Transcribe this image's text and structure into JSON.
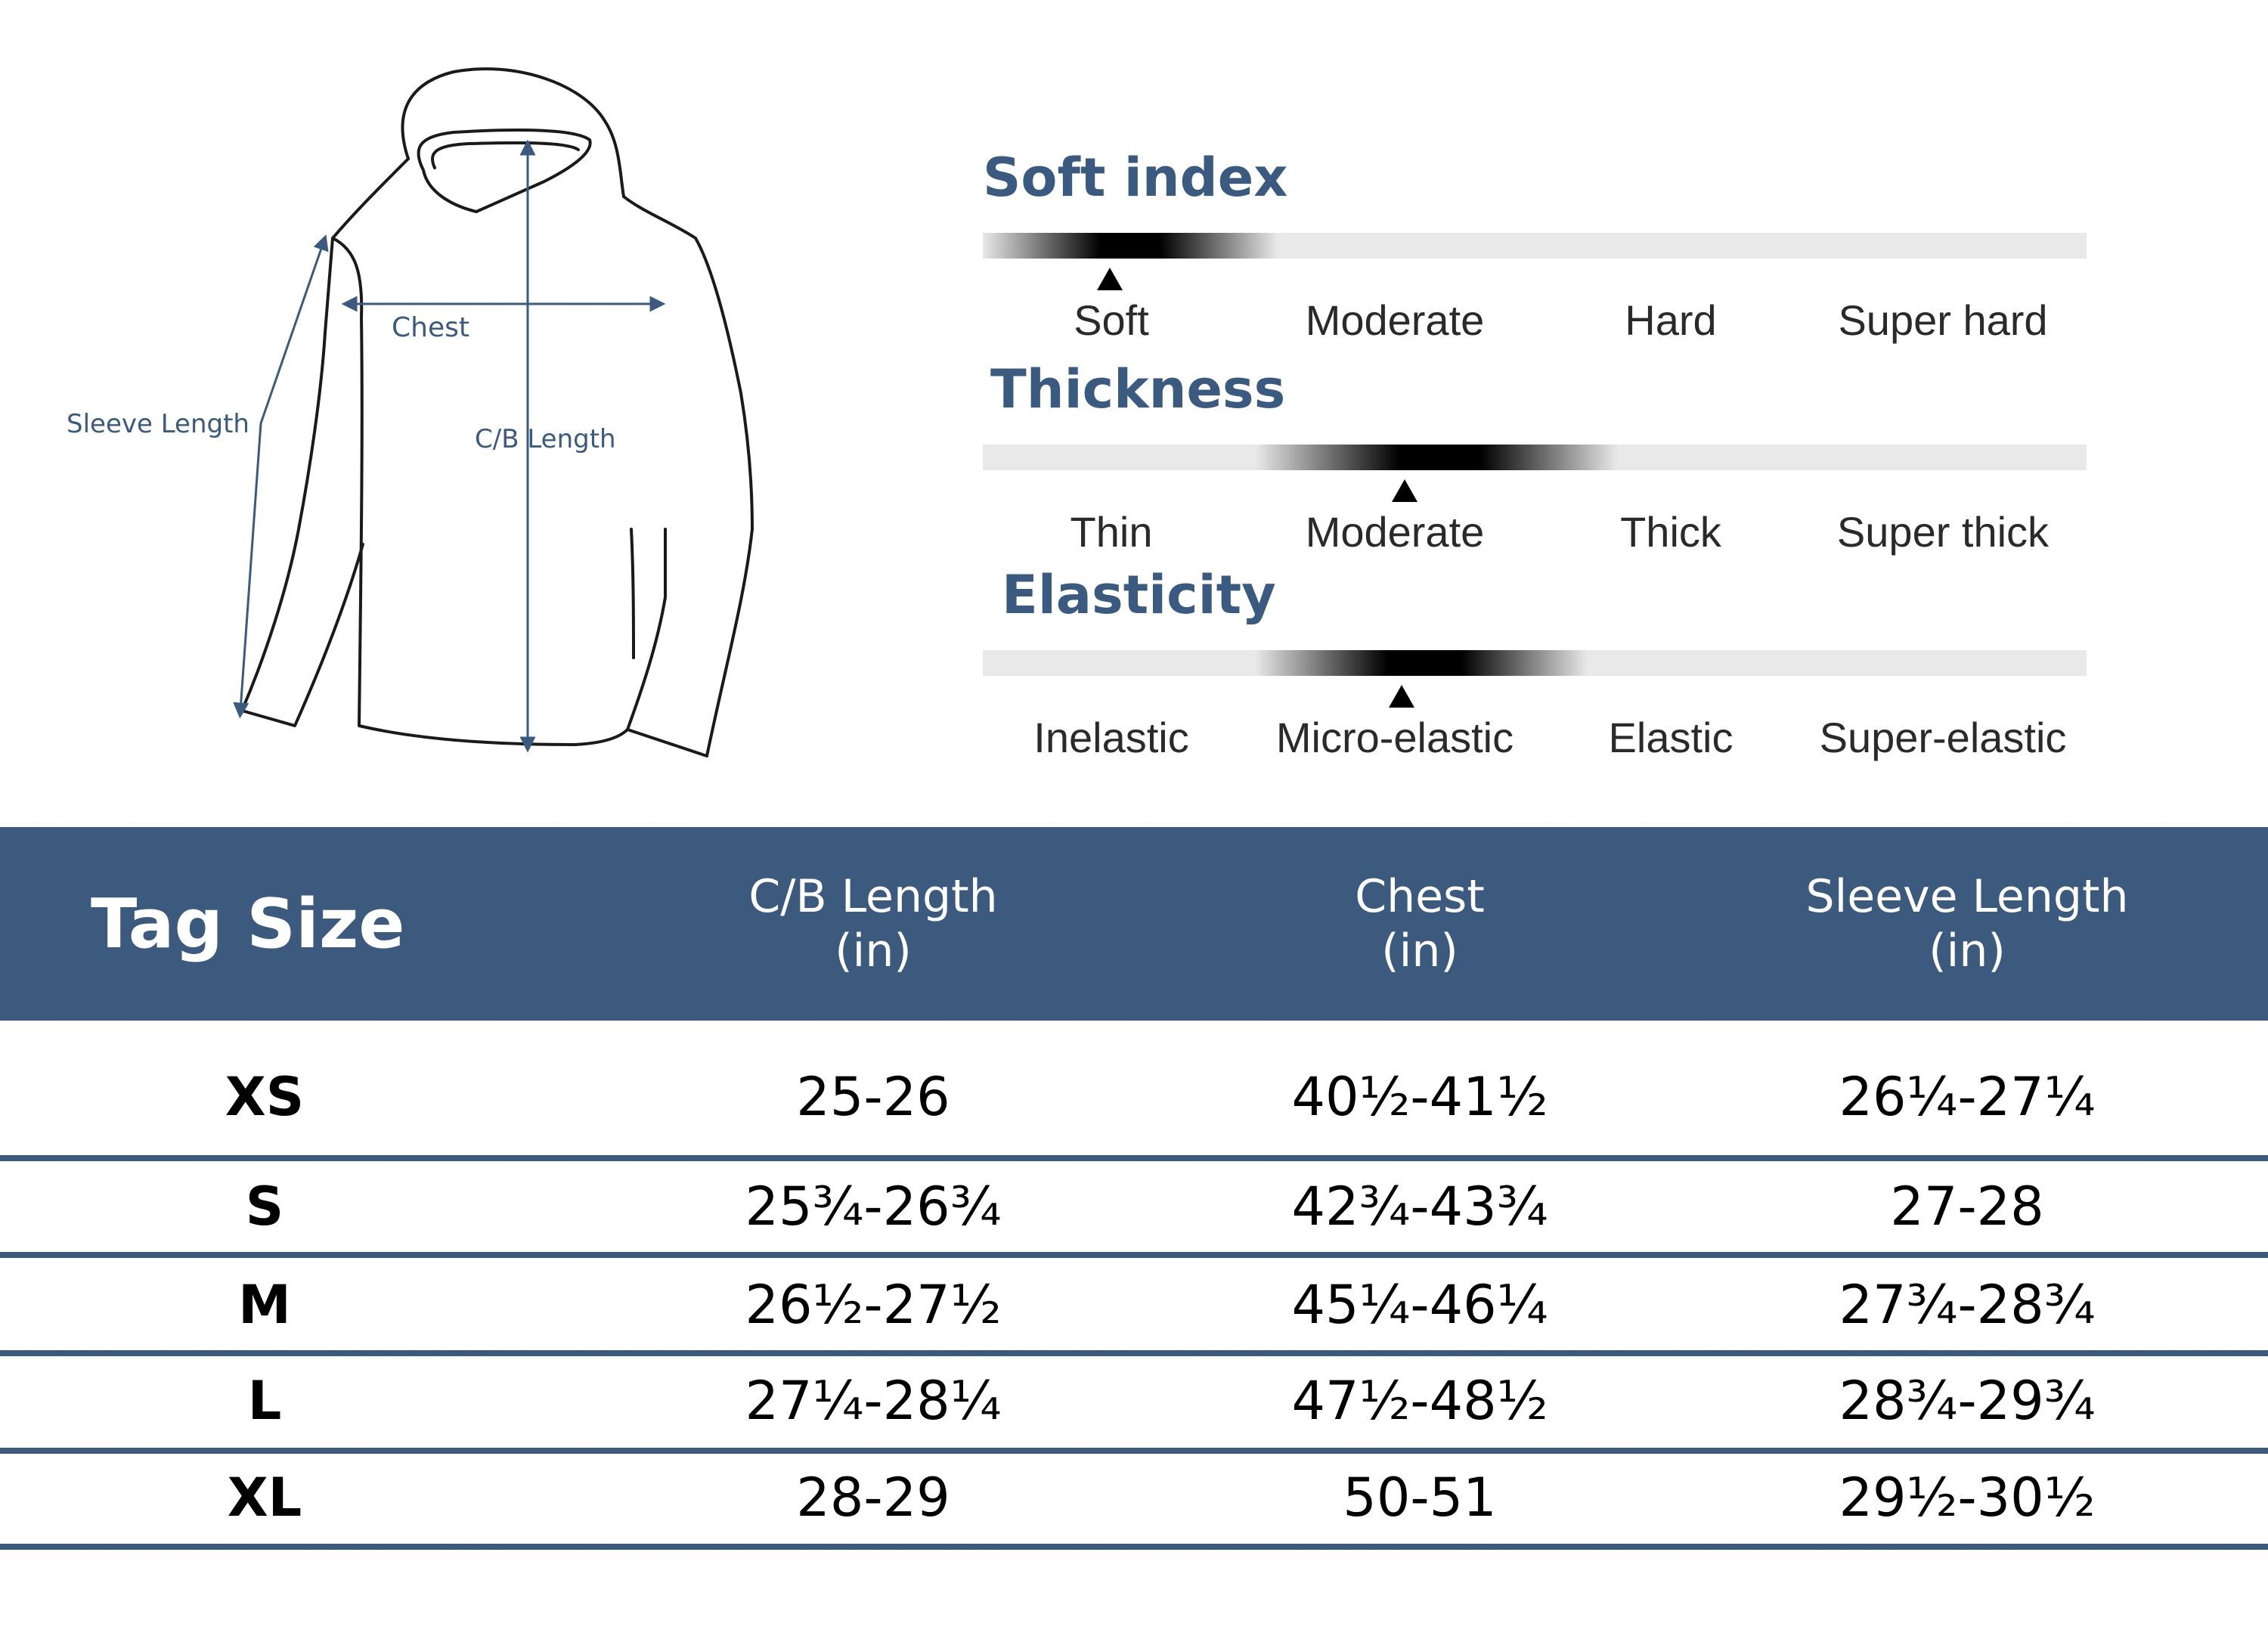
{
  "diagram": {
    "chest_label": "Chest",
    "sleeve_label": "Sleeve Length",
    "cb_label": "C/B Length"
  },
  "indices": [
    {
      "title": "Soft index",
      "labels": [
        "Soft",
        "Moderate",
        "Hard",
        "Super hard"
      ],
      "selected": 0
    },
    {
      "title": "Thickness",
      "labels": [
        "Thin",
        "Moderate",
        "Thick",
        "Super thick"
      ],
      "selected": 1
    },
    {
      "title": "Elasticity",
      "labels": [
        "Inelastic",
        "Micro-elastic",
        "Elastic",
        "Super-elastic"
      ],
      "selected": 1
    }
  ],
  "table": {
    "headers": {
      "tag": "Tag Size",
      "cb": [
        "C/B Length",
        "(in)"
      ],
      "chest": [
        "Chest",
        "(in)"
      ],
      "sleeve": [
        "Sleeve Length",
        "(in)"
      ]
    },
    "rows": [
      {
        "size": "XS",
        "cb": "25-26",
        "chest": "40½-41½",
        "sleeve": "26¼-27¼"
      },
      {
        "size": "S",
        "cb": "25¾-26¾",
        "chest": "42¾-43¾",
        "sleeve": "27-28"
      },
      {
        "size": "M",
        "cb": "26½-27½",
        "chest": "45¼-46¼",
        "sleeve": "27¾-28¾"
      },
      {
        "size": "L",
        "cb": "27¼-28¼",
        "chest": "47½-48½",
        "sleeve": "28¾-29¾"
      },
      {
        "size": "XL",
        "cb": "28-29",
        "chest": "50-51",
        "sleeve": "29½-30½"
      }
    ]
  },
  "colors": {
    "accent": "#3b5a7e",
    "bar_track": "#e9e9e9"
  }
}
